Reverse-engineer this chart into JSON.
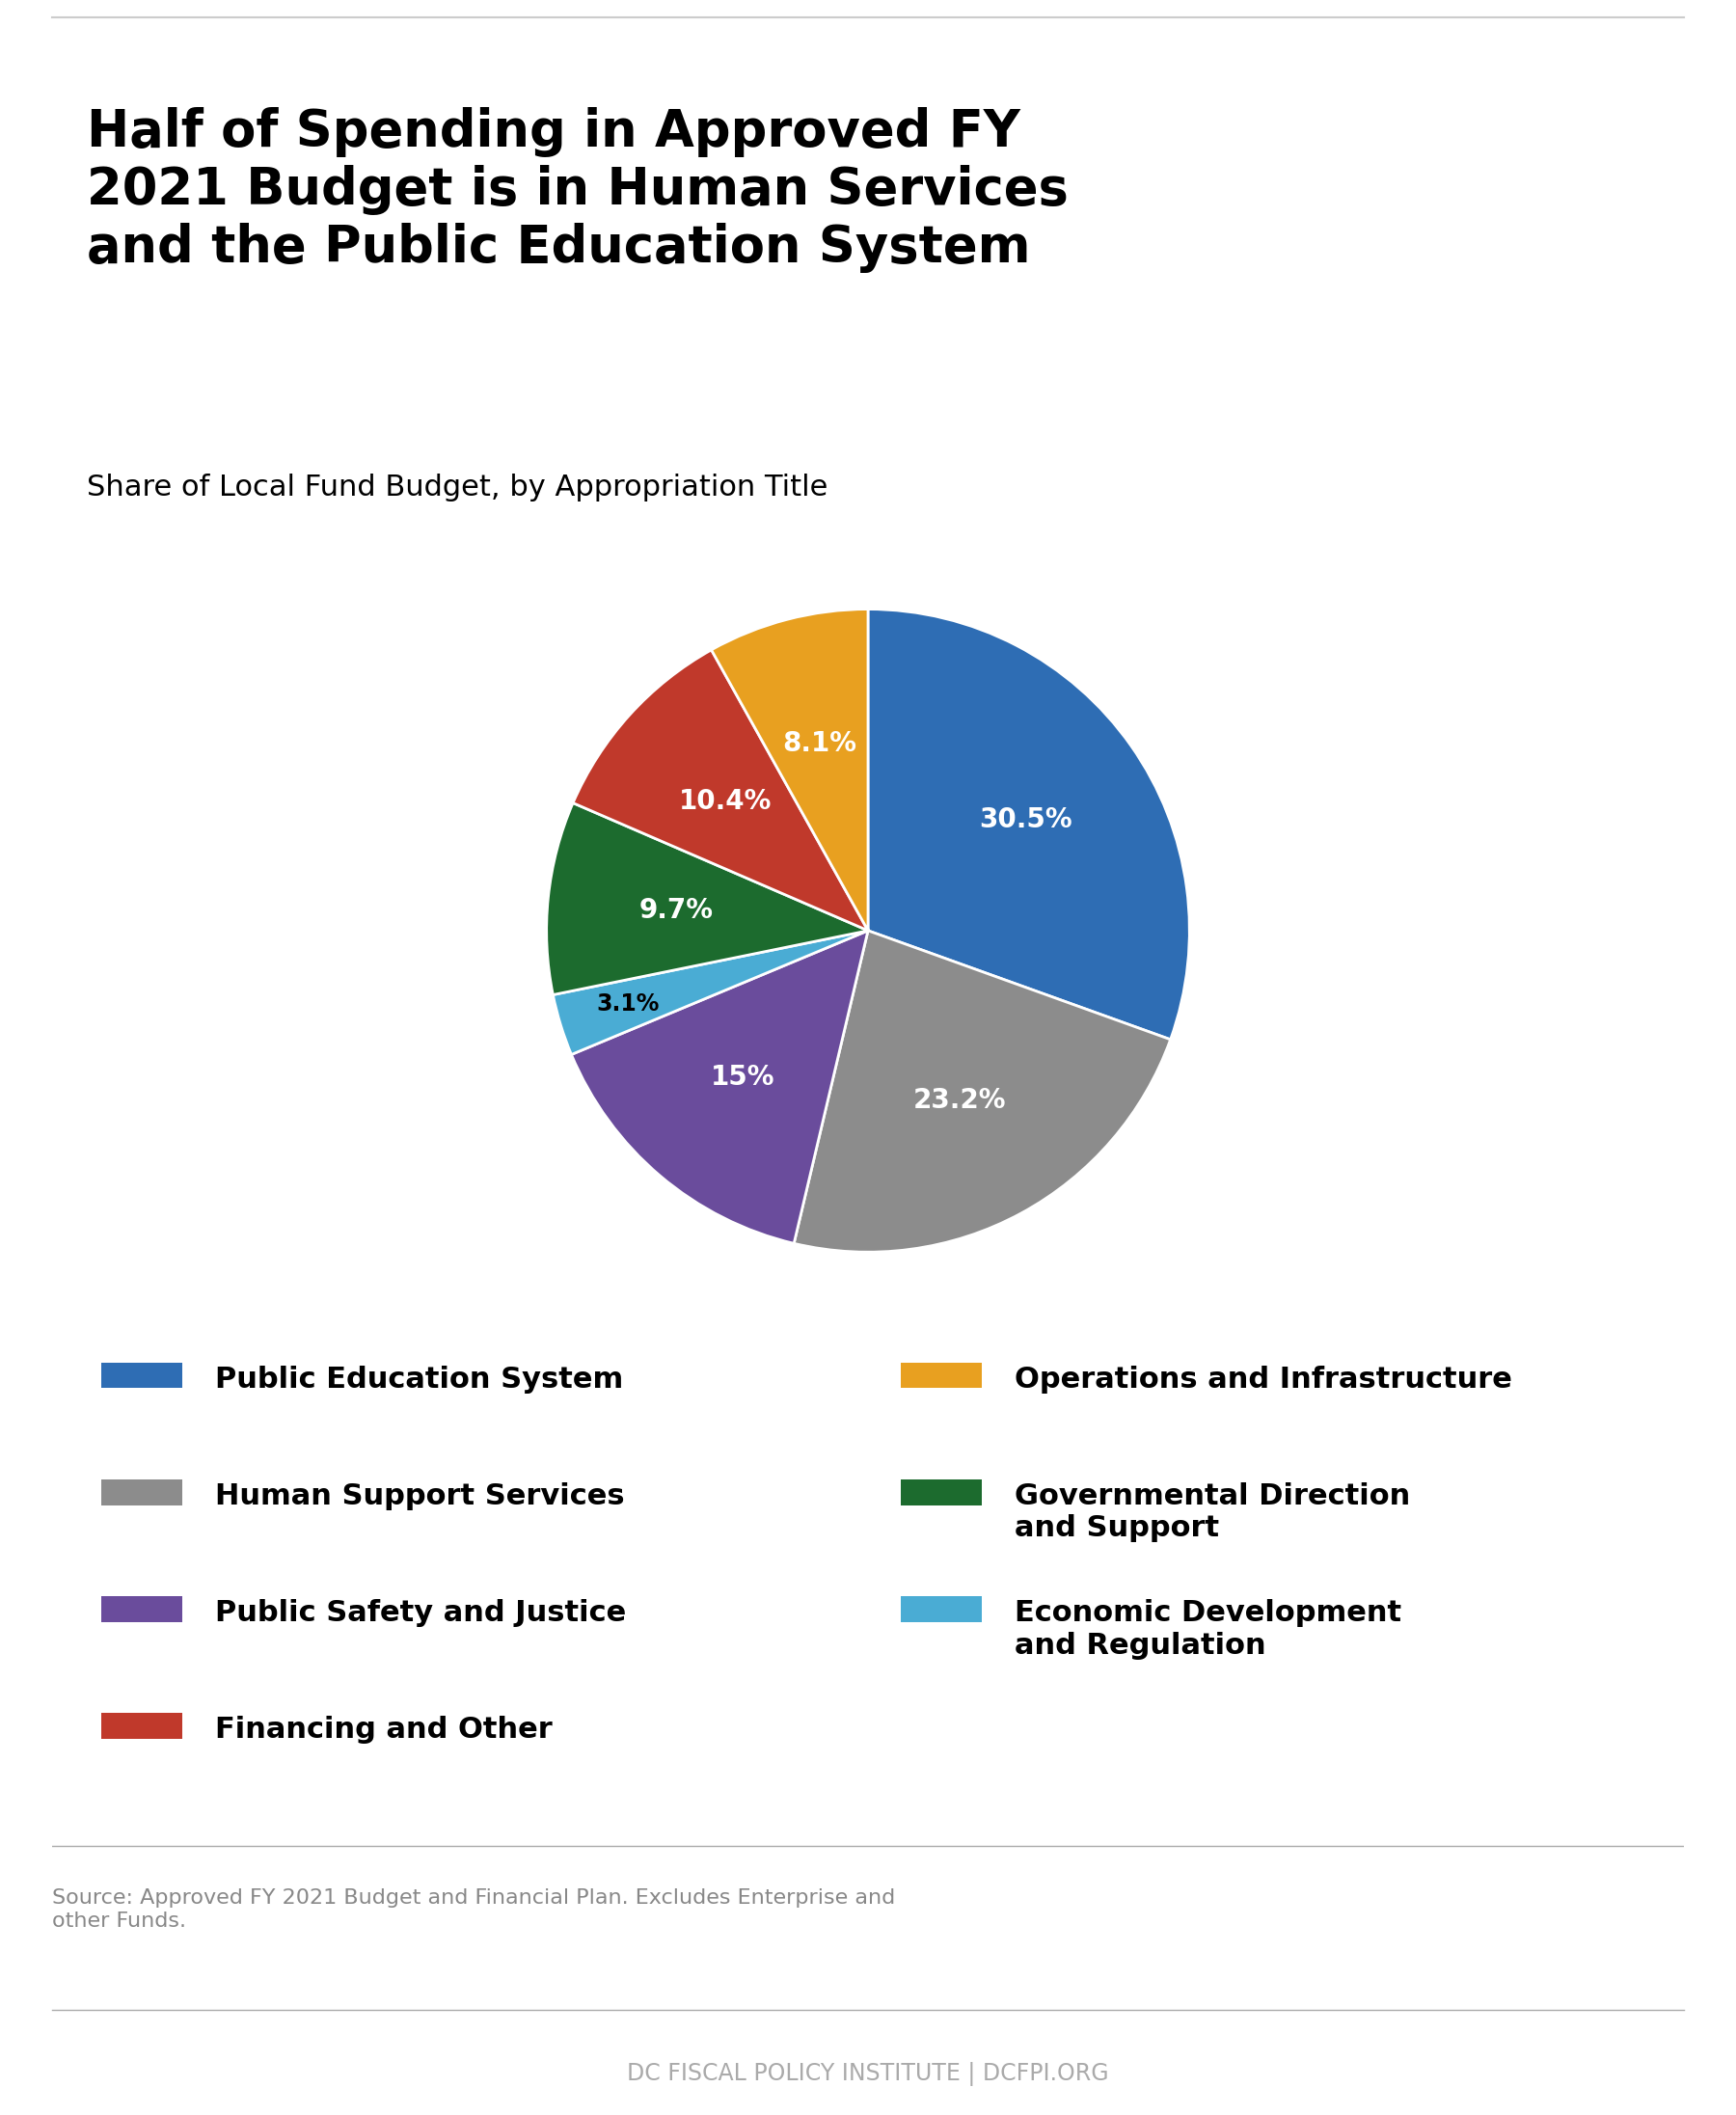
{
  "title": "Half of Spending in Approved FY\n2021 Budget is in Human Services\nand the Public Education System",
  "subtitle": "Share of Local Fund Budget, by Appropriation Title",
  "slices": [
    {
      "label": "Public Education System",
      "value": 30.5,
      "color": "#2E6DB4",
      "pct_label": "30.5%",
      "text_color": "white"
    },
    {
      "label": "Human Support Services",
      "value": 23.2,
      "color": "#8C8C8C",
      "pct_label": "23.2%",
      "text_color": "white"
    },
    {
      "label": "Public Safety and Justice",
      "value": 15.0,
      "color": "#6A4C9C",
      "pct_label": "15%",
      "text_color": "white"
    },
    {
      "label": "Economic Development\nand Regulation",
      "value": 3.1,
      "color": "#4AACD4",
      "pct_label": "3.1%",
      "text_color": "black"
    },
    {
      "label": "Governmental Direction\nand Support",
      "value": 9.7,
      "color": "#1C6B2E",
      "pct_label": "9.7%",
      "text_color": "white"
    },
    {
      "label": "Financing and Other",
      "value": 10.4,
      "color": "#C0392B",
      "pct_label": "10.4%",
      "text_color": "white"
    },
    {
      "label": "Operations and Infrastructure",
      "value": 8.1,
      "color": "#E8A020",
      "pct_label": "8.1%",
      "text_color": "white"
    }
  ],
  "legend_order": [
    "Public Education System",
    "Human Support Services",
    "Public Safety and Justice",
    "Financing and Other",
    "Operations and Infrastructure",
    "Governmental Direction\nand Support",
    "Economic Development\nand Regulation"
  ],
  "source_text": "Source: Approved FY 2021 Budget and Financial Plan. Excludes Enterprise and\nother Funds.",
  "footer_text": "DC FISCAL POLICY INSTITUTE | DCFPI.ORG",
  "background_color": "#FFFFFF",
  "title_fontsize": 38,
  "subtitle_fontsize": 22,
  "label_fontsize": 20,
  "legend_fontsize": 22,
  "source_fontsize": 16,
  "footer_fontsize": 17
}
